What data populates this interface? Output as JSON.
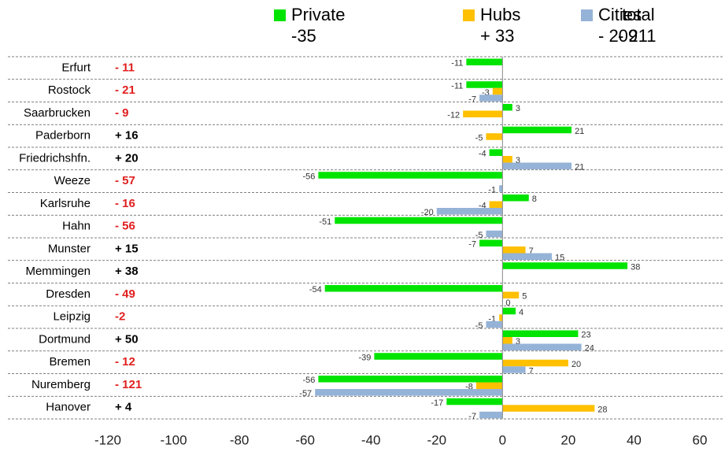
{
  "chart_data": {
    "type": "bar",
    "orientation": "horizontal",
    "categories": [
      "Erfurt",
      "Rostock",
      "Saarbrucken",
      "Paderborn",
      "Friedrichshfn.",
      "Weeze",
      "Karlsruhe",
      "Hahn",
      "Munster",
      "Memmingen",
      "Dresden",
      "Leipzig",
      "Dortmund",
      "Bremen",
      "Nuremberg",
      "Hanover"
    ],
    "series": [
      {
        "name": "Private",
        "color": "#00e400",
        "values": [
          -11,
          -11,
          3,
          21,
          -4,
          -56,
          8,
          -51,
          -7,
          38,
          -54,
          4,
          23,
          -39,
          -56,
          -17
        ]
      },
      {
        "name": "Hubs",
        "color": "#ffc000",
        "values": [
          null,
          -3,
          -12,
          -5,
          3,
          null,
          -4,
          null,
          7,
          null,
          5,
          -1,
          3,
          20,
          -8,
          28
        ]
      },
      {
        "name": "Cities",
        "color": "#95b3d7",
        "values": [
          null,
          -7,
          null,
          null,
          21,
          -1,
          -20,
          -5,
          15,
          null,
          0,
          -5,
          24,
          7,
          -57,
          -7
        ]
      }
    ],
    "totals": [
      -11,
      -21,
      -9,
      16,
      20,
      -57,
      -16,
      -56,
      15,
      38,
      -49,
      -2,
      50,
      -12,
      -121,
      4
    ],
    "total_labels": [
      "- 11",
      "- 21",
      "- 9",
      "+ 16",
      "+ 20",
      "- 57",
      "- 16",
      "- 56",
      "+ 15",
      "+ 38",
      "- 49",
      "-2",
      "+ 50",
      "- 12",
      "- 121",
      "+ 4"
    ],
    "legend_values": [
      "-35",
      "+ 33",
      "- 209"
    ],
    "total_title": "total",
    "total_value": "- 211",
    "xlim": [
      -120,
      60
    ],
    "xticks": [
      -120,
      -100,
      -80,
      -60,
      -40,
      -20,
      0,
      20,
      40,
      60
    ]
  }
}
